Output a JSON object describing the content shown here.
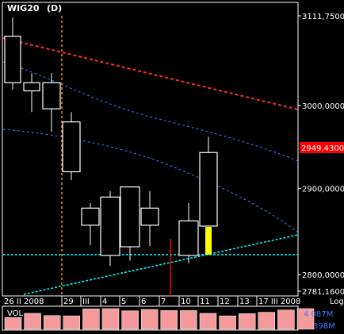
{
  "chart_data": [
    {
      "type": "candlestick",
      "title": "WIG20",
      "interval": "(D)",
      "y_scale": "log",
      "ylim": [
        2781.16,
        3111.75
      ],
      "y_ticks": [
        {
          "value": 3111.75,
          "label": "3111,7500"
        },
        {
          "value": 3000,
          "label": "3000,0000"
        },
        {
          "value": 2900,
          "label": "2900,0000"
        },
        {
          "value": 2800,
          "label": "2800,0000"
        },
        {
          "value": 2781.16,
          "label": "2781,1600"
        }
      ],
      "y_scale_label": "Log",
      "last_value": {
        "value": 2949.43,
        "label": "2949,4300",
        "color": "#ff0000"
      },
      "x_tick_labels": [
        "26 II 2008",
        "29",
        "III",
        "4",
        "5",
        "6",
        "7",
        "10",
        "11",
        "12",
        "13",
        "17 III 2008"
      ],
      "candles": [
        {
          "open": 3086,
          "high": 3110,
          "low": 3020,
          "close": 3028,
          "color": "#ffffff"
        },
        {
          "open": 3028,
          "high": 3040,
          "low": 2992,
          "close": 3018,
          "color": "#ffffff"
        },
        {
          "open": 3028,
          "high": 3040,
          "low": 2968,
          "close": 2996,
          "color": "#ffffff"
        },
        {
          "open": 2980,
          "high": 2992,
          "low": 2910,
          "close": 2920,
          "color": "#ffffff"
        },
        {
          "open": 2877,
          "high": 2883,
          "low": 2834,
          "close": 2857,
          "color": "#ffffff"
        },
        {
          "open": 2890,
          "high": 2897,
          "low": 2810,
          "close": 2822,
          "color": "#ffffff"
        },
        {
          "open": 2902,
          "high": 2902,
          "low": 2816,
          "close": 2832,
          "color": "#ffffff"
        },
        {
          "open": 2877,
          "high": 2897,
          "low": 2833,
          "close": 2857,
          "color": "#ffffff"
        },
        {
          "open": 2862,
          "high": 2883,
          "low": 2813,
          "close": 2822,
          "color": "#ffffff"
        },
        {
          "open": 2943,
          "high": 2962,
          "low": 2857,
          "close": 2856,
          "color": "#ffffff"
        },
        {
          "open": 2855,
          "high": 2855,
          "low": 2823,
          "close": 2823,
          "color": "#ffff00"
        }
      ],
      "volume": {
        "label": "VOL",
        "scale_labels": [
          "4 087M",
          "398M"
        ],
        "bar_color": "#f59a9a",
        "values": [
          2100,
          2850,
          2450,
          2400,
          3650,
          3700,
          3300,
          3550,
          3350,
          3350,
          2850,
          2400,
          2800,
          3050,
          3450,
          3700
        ]
      },
      "overlays": [
        {
          "kind": "trend-line",
          "style": "dashed",
          "color": "#ff2a2a"
        },
        {
          "kind": "curve",
          "style": "dashed",
          "color": "#3b7bff"
        },
        {
          "kind": "curve",
          "style": "dashed",
          "color": "#3b7bff"
        },
        {
          "kind": "trend-line",
          "style": "dashed",
          "color": "#00ffff"
        },
        {
          "kind": "horizontal-line",
          "style": "dashed",
          "color": "#00ffff"
        },
        {
          "kind": "vertical-line",
          "style": "dashed",
          "color": "#ff8c00"
        },
        {
          "kind": "vertical-line",
          "style": "solid",
          "color": "#ff0000"
        }
      ]
    }
  ]
}
